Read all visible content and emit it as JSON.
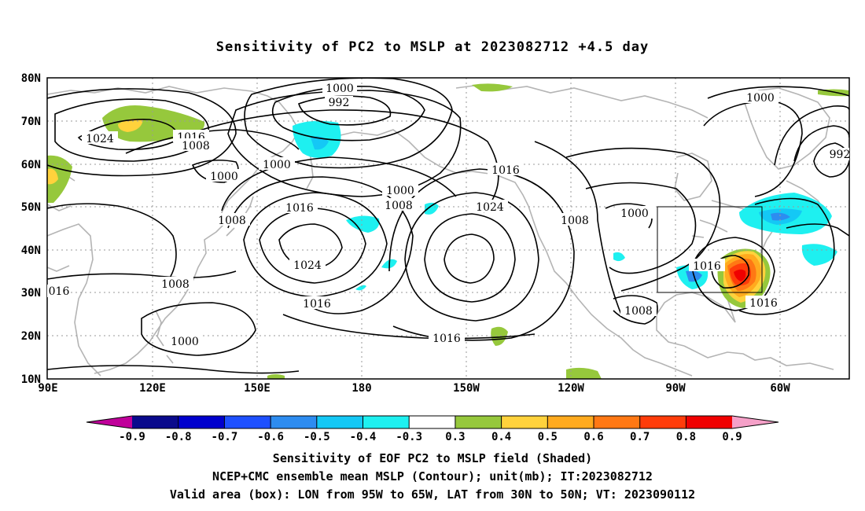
{
  "title": "Sensitivity of PC2 to MSLP at 2023082712 +4.5 day",
  "lat_labels": [
    "80N",
    "70N",
    "60N",
    "50N",
    "40N",
    "30N",
    "20N",
    "10N"
  ],
  "lon_labels": [
    "90E",
    "120E",
    "150E",
    "180",
    "150W",
    "120W",
    "90W",
    "60W"
  ],
  "contour_labels": [
    "1000",
    "992",
    "1024",
    "1016",
    "1008",
    "1000",
    "1000",
    "1008",
    "1016",
    "1024",
    "1016",
    "1008",
    "1024",
    "1000",
    "1008",
    "1016",
    "1016",
    "1016",
    "1000",
    "1000",
    "992",
    "1008",
    "1000",
    "1008",
    "016",
    "1016"
  ],
  "colorbar": {
    "labels": [
      "-0.9",
      "-0.8",
      "-0.7",
      "-0.6",
      "-0.5",
      "-0.4",
      "-0.3",
      "0.3",
      "0.4",
      "0.5",
      "0.6",
      "0.7",
      "0.8",
      "0.9"
    ],
    "colors": [
      "#c0009a",
      "#0a0a8c",
      "#0000cd",
      "#1e50ff",
      "#2d8cf0",
      "#14c8f5",
      "#1ef0f0",
      "#ffffff",
      "#96c83c",
      "#ffd23c",
      "#ffaa1e",
      "#ff7814",
      "#ff3c0a",
      "#f00000",
      "#f5a0c8"
    ]
  },
  "captions": [
    "Sensitivity of EOF PC2 to MSLP field (Shaded)",
    "NCEP+CMC ensemble mean MSLP (Contour); unit(mb); IT:2023082712",
    "Valid area (box): LON from 95W to 65W, LAT from 30N to 50N; VT: 2023090112"
  ]
}
